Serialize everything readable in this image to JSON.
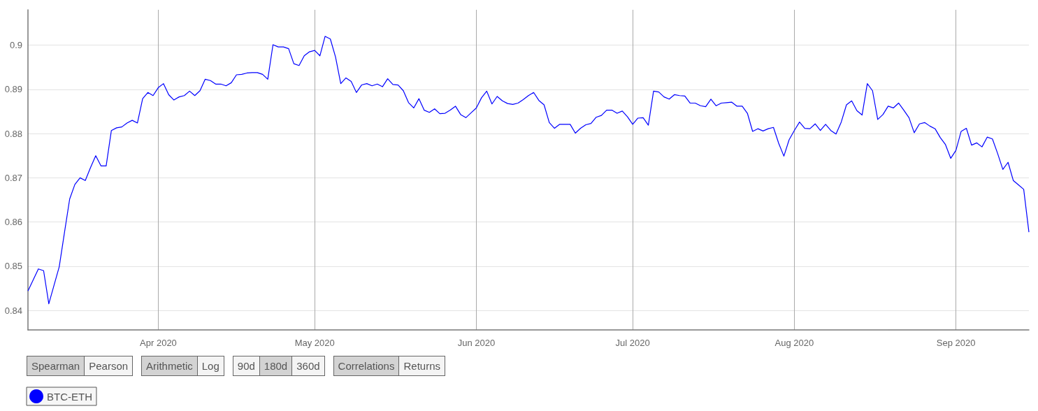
{
  "chart_data": {
    "type": "line",
    "x": [
      "2020-03-07",
      "2020-03-08",
      "2020-03-09",
      "2020-03-10",
      "2020-03-11",
      "2020-03-12",
      "2020-03-13",
      "2020-03-14",
      "2020-03-15",
      "2020-03-16",
      "2020-03-17",
      "2020-03-18",
      "2020-03-19",
      "2020-03-20",
      "2020-03-21",
      "2020-03-22",
      "2020-03-23",
      "2020-03-24",
      "2020-03-25",
      "2020-03-26",
      "2020-03-27",
      "2020-03-28",
      "2020-03-29",
      "2020-03-30",
      "2020-03-31",
      "2020-04-01",
      "2020-04-02",
      "2020-04-03",
      "2020-04-04",
      "2020-04-05",
      "2020-04-06",
      "2020-04-07",
      "2020-04-08",
      "2020-04-09",
      "2020-04-10",
      "2020-04-11",
      "2020-04-12",
      "2020-04-13",
      "2020-04-14",
      "2020-04-15",
      "2020-04-16",
      "2020-04-17",
      "2020-04-18",
      "2020-04-19",
      "2020-04-20",
      "2020-04-21",
      "2020-04-22",
      "2020-04-23",
      "2020-04-24",
      "2020-04-25",
      "2020-04-26",
      "2020-04-27",
      "2020-04-28",
      "2020-04-29",
      "2020-04-30",
      "2020-05-01",
      "2020-05-02",
      "2020-05-03",
      "2020-05-04",
      "2020-05-05",
      "2020-05-06",
      "2020-05-07",
      "2020-05-08",
      "2020-05-09",
      "2020-05-10",
      "2020-05-11",
      "2020-05-12",
      "2020-05-13",
      "2020-05-14",
      "2020-05-15",
      "2020-05-16",
      "2020-05-17",
      "2020-05-18",
      "2020-05-19",
      "2020-05-20",
      "2020-05-21",
      "2020-05-22",
      "2020-05-23",
      "2020-05-24",
      "2020-05-25",
      "2020-05-26",
      "2020-05-27",
      "2020-05-28",
      "2020-05-29",
      "2020-05-30",
      "2020-05-31",
      "2020-06-01",
      "2020-06-02",
      "2020-06-03",
      "2020-06-04",
      "2020-06-05",
      "2020-06-06",
      "2020-06-07",
      "2020-06-08",
      "2020-06-09",
      "2020-06-10",
      "2020-06-11",
      "2020-06-12",
      "2020-06-13",
      "2020-06-14",
      "2020-06-15",
      "2020-06-16",
      "2020-06-17",
      "2020-06-18",
      "2020-06-19",
      "2020-06-20",
      "2020-06-21",
      "2020-06-22",
      "2020-06-23",
      "2020-06-24",
      "2020-06-25",
      "2020-06-26",
      "2020-06-27",
      "2020-06-28",
      "2020-06-29",
      "2020-06-30",
      "2020-07-01",
      "2020-07-02",
      "2020-07-03",
      "2020-07-04",
      "2020-07-05",
      "2020-07-06",
      "2020-07-07",
      "2020-07-08",
      "2020-07-09",
      "2020-07-10",
      "2020-07-11",
      "2020-07-12",
      "2020-07-13",
      "2020-07-14",
      "2020-07-15",
      "2020-07-16",
      "2020-07-17",
      "2020-07-18",
      "2020-07-19",
      "2020-07-20",
      "2020-07-21",
      "2020-07-22",
      "2020-07-23",
      "2020-07-24",
      "2020-07-25",
      "2020-07-26",
      "2020-07-27",
      "2020-07-28",
      "2020-07-29",
      "2020-07-30",
      "2020-07-31",
      "2020-08-01",
      "2020-08-02",
      "2020-08-03",
      "2020-08-04",
      "2020-08-05",
      "2020-08-06",
      "2020-08-07",
      "2020-08-08",
      "2020-08-09",
      "2020-08-10",
      "2020-08-11",
      "2020-08-12",
      "2020-08-13",
      "2020-08-14",
      "2020-08-15",
      "2020-08-16",
      "2020-08-17",
      "2020-08-18",
      "2020-08-19",
      "2020-08-20",
      "2020-08-21",
      "2020-08-22",
      "2020-08-23",
      "2020-08-24",
      "2020-08-25",
      "2020-08-26",
      "2020-08-27",
      "2020-08-28",
      "2020-08-29",
      "2020-08-30",
      "2020-08-31",
      "2020-09-01",
      "2020-09-02",
      "2020-09-03",
      "2020-09-04",
      "2020-09-05",
      "2020-09-06",
      "2020-09-07",
      "2020-09-08",
      "2020-09-09",
      "2020-09-10",
      "2020-09-11",
      "2020-09-12",
      "2020-09-13",
      "2020-09-14",
      "2020-09-15"
    ],
    "series": [
      {
        "name": "BTC-ETH",
        "color": "#0000ff",
        "values": [
          0.8444,
          0.8469,
          0.8494,
          0.849,
          0.8415,
          0.8457,
          0.8499,
          0.8576,
          0.8652,
          0.8685,
          0.87,
          0.8694,
          0.8723,
          0.875,
          0.8727,
          0.8727,
          0.8807,
          0.8813,
          0.8815,
          0.8824,
          0.883,
          0.8824,
          0.8879,
          0.8893,
          0.8886,
          0.8904,
          0.8913,
          0.8888,
          0.8876,
          0.8883,
          0.8886,
          0.8896,
          0.8886,
          0.8897,
          0.8923,
          0.892,
          0.8912,
          0.8912,
          0.8908,
          0.8915,
          0.8933,
          0.8934,
          0.8937,
          0.8938,
          0.8938,
          0.8934,
          0.8923,
          0.9001,
          0.8996,
          0.8996,
          0.8992,
          0.8958,
          0.8954,
          0.8976,
          0.8985,
          0.8988,
          0.8976,
          0.902,
          0.9014,
          0.8973,
          0.8913,
          0.8926,
          0.8918,
          0.8893,
          0.891,
          0.8913,
          0.8908,
          0.8912,
          0.8906,
          0.8924,
          0.8911,
          0.891,
          0.8897,
          0.887,
          0.8858,
          0.8879,
          0.8853,
          0.8848,
          0.8856,
          0.8845,
          0.8846,
          0.8853,
          0.8862,
          0.8843,
          0.8836,
          0.8847,
          0.8858,
          0.8881,
          0.8896,
          0.8867,
          0.8884,
          0.8874,
          0.8868,
          0.8866,
          0.8869,
          0.8877,
          0.8886,
          0.8893,
          0.8875,
          0.8865,
          0.8825,
          0.8812,
          0.8821,
          0.8821,
          0.8821,
          0.8801,
          0.8812,
          0.882,
          0.8823,
          0.8837,
          0.8841,
          0.8853,
          0.8853,
          0.8846,
          0.8851,
          0.8838,
          0.8821,
          0.8835,
          0.8836,
          0.8819,
          0.8896,
          0.8894,
          0.8883,
          0.8878,
          0.8888,
          0.8886,
          0.8885,
          0.8869,
          0.8869,
          0.8863,
          0.8861,
          0.8878,
          0.8863,
          0.8869,
          0.887,
          0.8871,
          0.8862,
          0.8862,
          0.8846,
          0.8805,
          0.8811,
          0.8806,
          0.8811,
          0.8814,
          0.8778,
          0.8749,
          0.8786,
          0.8807,
          0.8826,
          0.8812,
          0.8811,
          0.8822,
          0.8807,
          0.8821,
          0.8807,
          0.8799,
          0.8826,
          0.8865,
          0.8874,
          0.8852,
          0.8842,
          0.8913,
          0.8897,
          0.8832,
          0.8843,
          0.8862,
          0.8858,
          0.8869,
          0.8853,
          0.8836,
          0.8802,
          0.8822,
          0.8825,
          0.8817,
          0.8811,
          0.8791,
          0.8775,
          0.8744,
          0.8762,
          0.8805,
          0.8812,
          0.8774,
          0.8779,
          0.877,
          0.8792,
          0.8788,
          0.8755,
          0.8719,
          0.8735,
          0.8694,
          0.8684,
          0.8674,
          0.8577
        ]
      }
    ],
    "xlim": [
      "2020-03-07",
      "2020-09-15"
    ],
    "xticks": [
      {
        "value": "2020-04-01",
        "label": "Apr 2020"
      },
      {
        "value": "2020-05-01",
        "label": "May 2020"
      },
      {
        "value": "2020-06-01",
        "label": "Jun 2020"
      },
      {
        "value": "2020-07-01",
        "label": "Jul 2020"
      },
      {
        "value": "2020-08-01",
        "label": "Aug 2020"
      },
      {
        "value": "2020-09-01",
        "label": "Sep 2020"
      }
    ],
    "ylim": [
      0.8356,
      0.908
    ],
    "yticks": [
      0.84,
      0.85,
      0.86,
      0.87,
      0.88,
      0.89,
      0.9
    ],
    "grid": true,
    "legend": "bottom left",
    "marker": "none",
    "line_style": "solid",
    "annotations": [
      "Spearman",
      "Pearson",
      "Arithmetic",
      "Log",
      "90d",
      "180d",
      "360d",
      "Correlations",
      "Returns"
    ]
  }
}
